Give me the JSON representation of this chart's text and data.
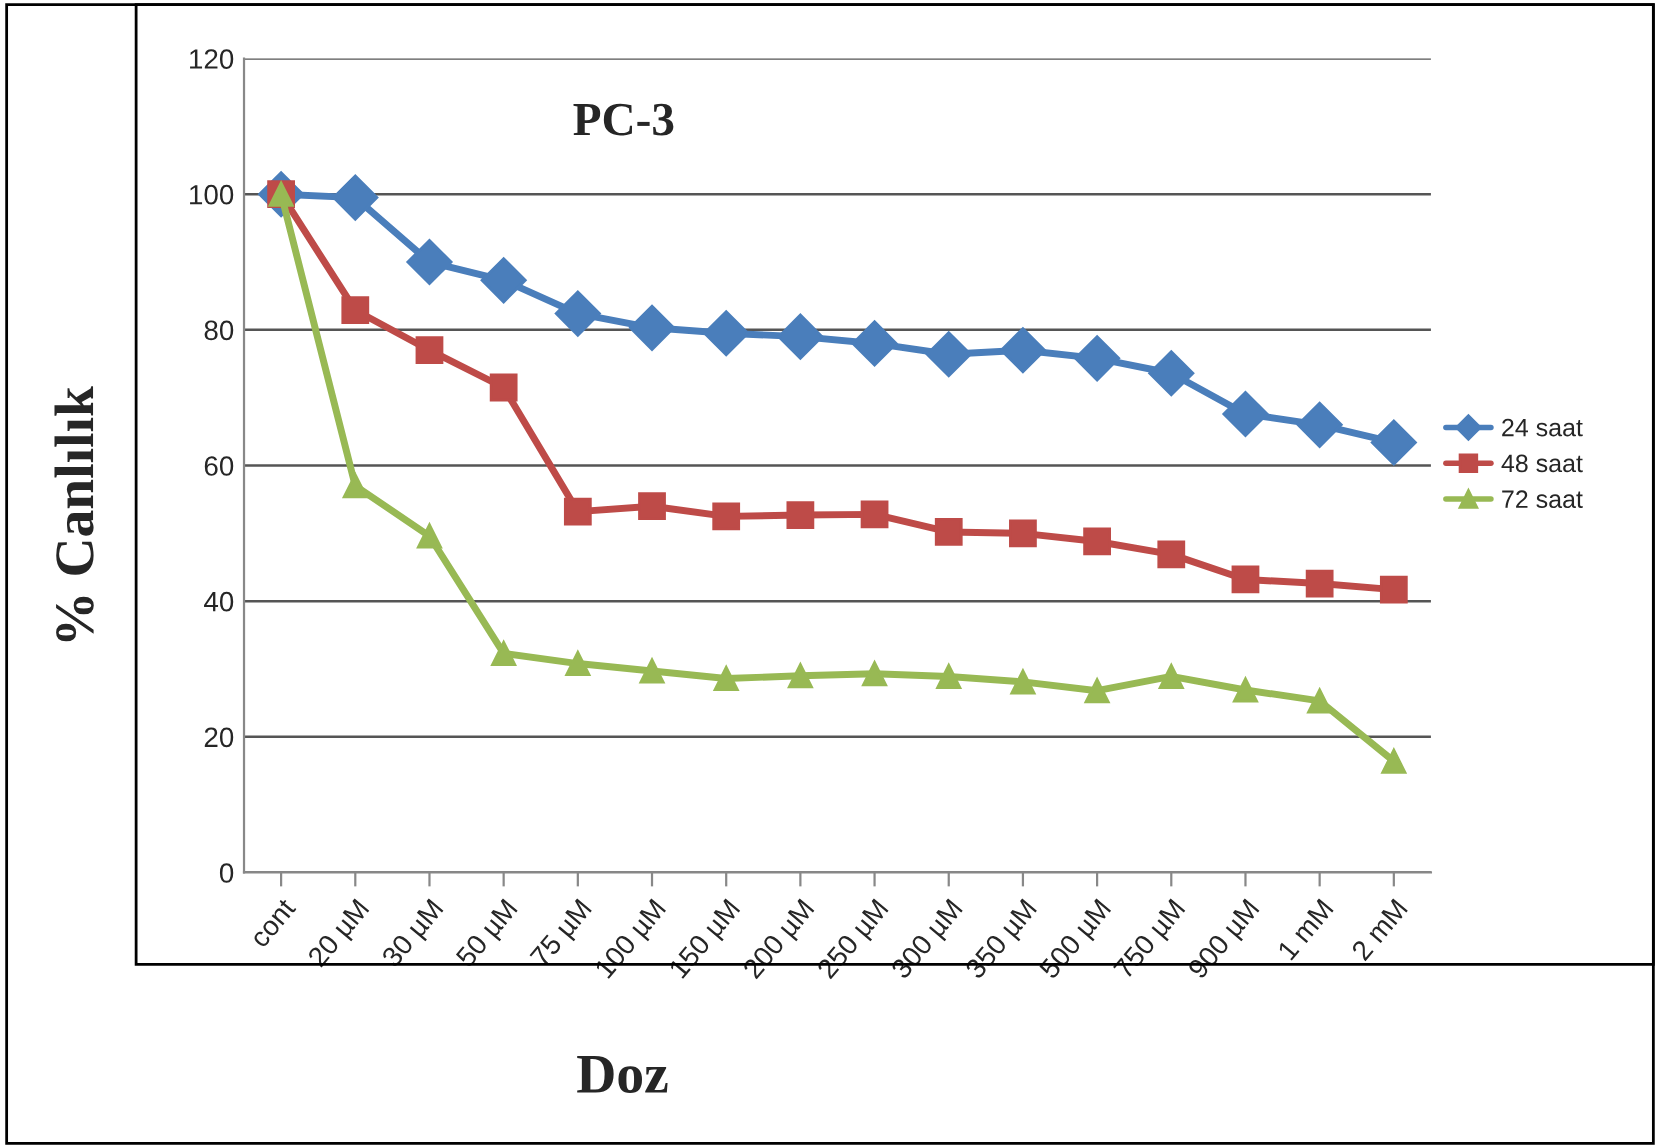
{
  "chart_data": {
    "type": "line",
    "title": "PC-3",
    "xlabel": "Doz",
    "ylabel": "% Canlılık",
    "categories": [
      "cont",
      "20 µM",
      "30 µM",
      "50 µM",
      "75 µM",
      "100 µM",
      "150 µM",
      "200 µM",
      "250 µM",
      "300 µM",
      "350 µM",
      "500 µM",
      "750 µM",
      "900 µM",
      "1 mM",
      "2 mM"
    ],
    "series": [
      {
        "name": "24 saat",
        "color": "#4a7ebb",
        "marker": "diamond",
        "values": [
          100,
          99.5,
          90,
          87.3,
          82.4,
          80.3,
          79.5,
          79,
          78,
          76.4,
          77,
          75.8,
          73.6,
          67.6,
          66,
          63.4
        ]
      },
      {
        "name": "48 saat",
        "color": "#be4b48",
        "marker": "square",
        "values": [
          100,
          82.9,
          77,
          71.5,
          53.2,
          54,
          52.5,
          52.7,
          52.8,
          50.2,
          50,
          48.8,
          46.9,
          43.2,
          42.6,
          41.7
        ]
      },
      {
        "name": "72 saat",
        "color": "#98b954",
        "marker": "triangle",
        "values": [
          100,
          57,
          49.6,
          32.3,
          30.8,
          29.7,
          28.6,
          29,
          29.3,
          28.9,
          28.1,
          26.8,
          28.9,
          26.9,
          25.3,
          16.4
        ]
      }
    ],
    "ylim": [
      0,
      120
    ],
    "yticks": [
      0,
      20,
      40,
      60,
      80,
      100,
      120
    ],
    "grid": "y",
    "legend": "right",
    "line_style": "solid"
  }
}
